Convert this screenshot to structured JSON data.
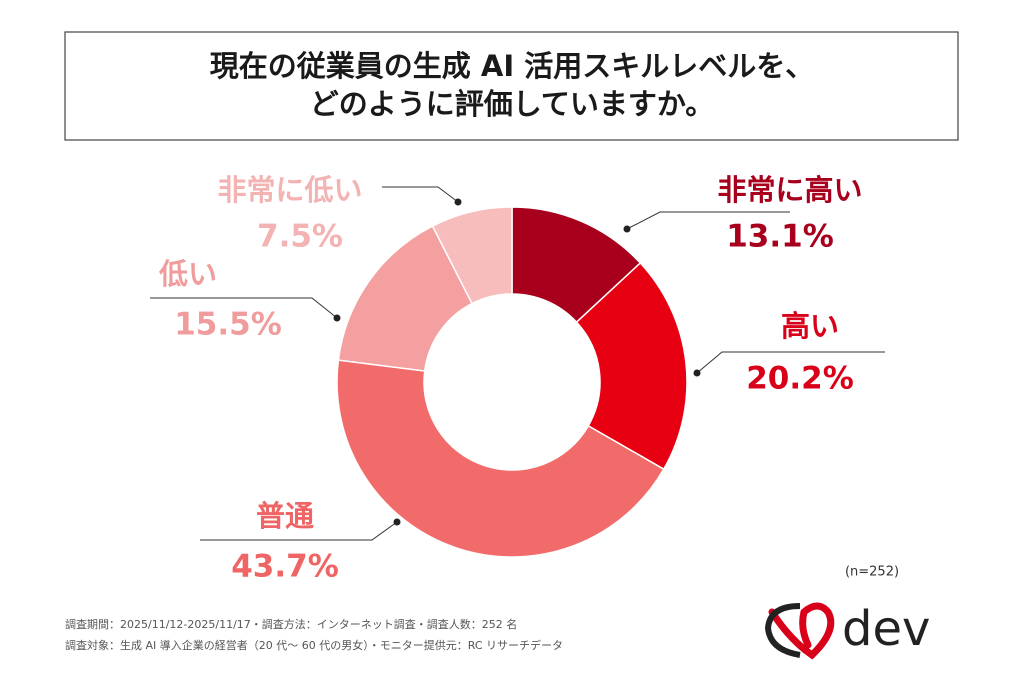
{
  "chart_data": {
    "type": "donut",
    "title": [
      "現在の従業員の生成 AI 活用スキルレベルを、",
      "どのように評価していますか。"
    ],
    "categories": [
      "非常に高い",
      "高い",
      "普通",
      "低い",
      "非常に低い"
    ],
    "values": [
      13.1,
      20.2,
      43.7,
      15.5,
      7.5
    ],
    "value_labels": [
      "13.1%",
      "20.2%",
      "43.7%",
      "15.5%",
      "7.5%"
    ],
    "colors": [
      "#a8001c",
      "#e60012",
      "#f26b6b",
      "#f5a0a0",
      "#f7bcbc"
    ],
    "label_colors": [
      "#a8001c",
      "#d9001a",
      "#ef6464",
      "#f09c9c",
      "#f3b3b3"
    ],
    "sample_note": "(n=252)",
    "footnotes": [
      "調査期間：2025/11/12-2025/11/17・調査方法：インターネット調査・調査人数：252 名",
      "調査対象：生成 AI 導入企業の経営者（20 代～ 60 代の男女）・モニター提供元：RC リサーチデータ"
    ],
    "logo": "dev"
  }
}
